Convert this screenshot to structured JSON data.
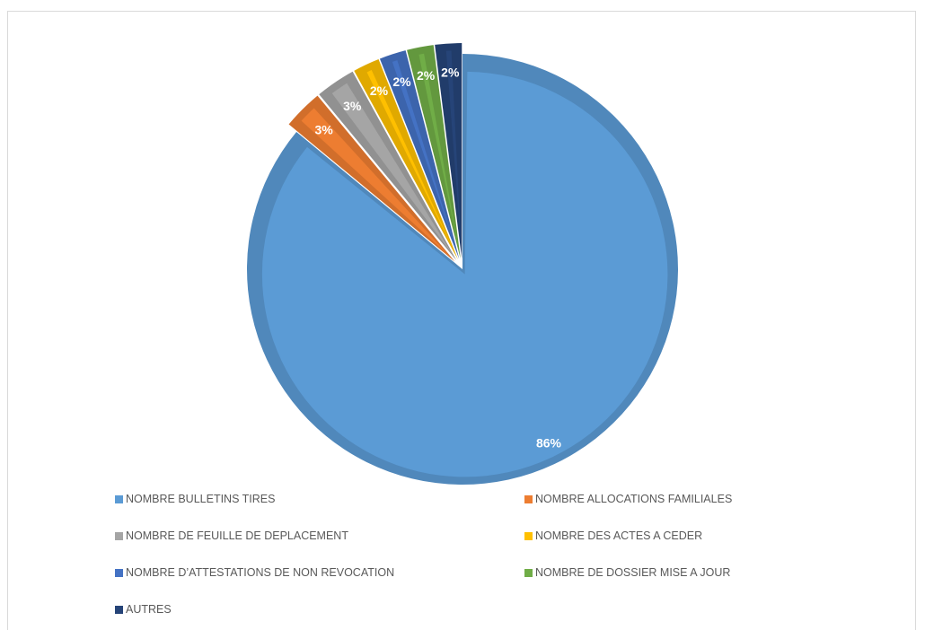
{
  "chart_data": {
    "type": "pie",
    "title": "",
    "start_angle_deg": 0,
    "direction": "clockwise",
    "exploded": true,
    "legend_position": "bottom",
    "slices": [
      {
        "label": "NOMBRE BULLETINS TIRES",
        "value": 86,
        "display": "86%",
        "color": "#5B9BD5"
      },
      {
        "label": "NOMBRE ALLOCATIONS FAMILIALES",
        "value": 3,
        "display": "3%",
        "color": "#ED7D31"
      },
      {
        "label": "NOMBRE DE FEUILLE DE DEPLACEMENT",
        "value": 3,
        "display": "3%",
        "color": "#A5A5A5"
      },
      {
        "label": "NOMBRE DES ACTES A CEDER",
        "value": 2,
        "display": "2%",
        "color": "#FFC000"
      },
      {
        "label": "NOMBRE D’ATTESTATIONS DE NON REVOCATION",
        "value": 2,
        "display": "2%",
        "color": "#4472C4"
      },
      {
        "label": "NOMBRE DE DOSSIER MISE A JOUR",
        "value": 2,
        "display": "2%",
        "color": "#70AD47"
      },
      {
        "label": "AUTRES",
        "value": 2,
        "display": "2%",
        "color": "#264478"
      }
    ]
  }
}
